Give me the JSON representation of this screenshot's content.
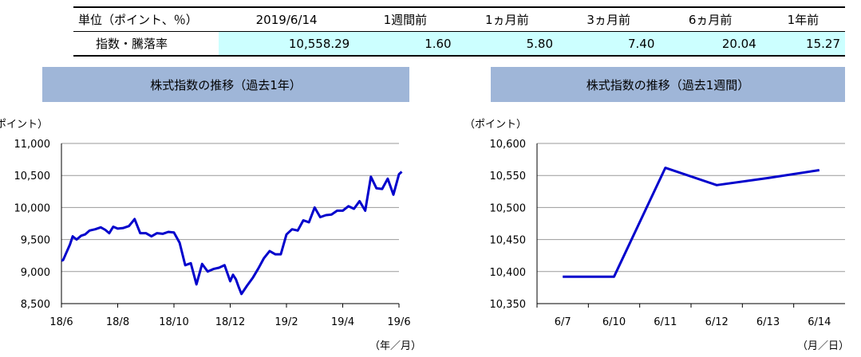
{
  "table": {
    "headers": [
      "単位（ポイント、％）",
      "2019/6/14",
      "1週間前",
      "1ヵ月前",
      "3ヵ月前",
      "6ヵ月前",
      "1年前"
    ],
    "row_label": "指数・騰落率",
    "values": [
      "10,558.29",
      "1.60",
      "5.80",
      "7.40",
      "20.04",
      "15.27"
    ]
  },
  "chart_data": [
    {
      "type": "line",
      "title": "株式指数の推移（過去1年）",
      "ylabel": "（ポイント）",
      "xlabel": "（年／月）",
      "ylim": [
        8500,
        11000
      ],
      "yticks": [
        8500,
        9000,
        9500,
        10000,
        10500,
        11000
      ],
      "ytick_labels": [
        "8,500",
        "9,000",
        "9,500",
        "10,000",
        "10,500",
        "11,000"
      ],
      "xtick_labels": [
        "18/6",
        "18/8",
        "18/10",
        "18/12",
        "19/2",
        "19/4",
        "19/6"
      ],
      "color": "#0000cc",
      "series": [
        {
          "x": [
            0.0,
            0.03,
            0.08,
            0.15,
            0.2,
            0.27,
            0.35,
            0.42,
            0.5,
            0.6,
            0.7,
            0.78,
            0.85,
            0.92,
            1.0,
            1.1,
            1.2,
            1.3,
            1.4,
            1.5,
            1.6,
            1.7,
            1.8,
            1.9,
            2.0,
            2.1,
            2.2,
            2.3,
            2.4,
            2.5,
            2.6,
            2.7,
            2.8,
            2.9,
            3.0,
            3.05,
            3.1,
            3.15,
            3.2,
            3.3,
            3.4,
            3.5,
            3.6,
            3.7,
            3.8,
            3.9,
            4.0,
            4.1,
            4.2,
            4.3,
            4.4,
            4.5,
            4.6,
            4.7,
            4.8,
            4.9,
            5.0,
            5.1,
            5.2,
            5.3,
            5.4,
            5.5,
            5.6,
            5.7,
            5.8,
            5.9,
            6.0,
            6.05
          ],
          "y": [
            9170,
            9180,
            9280,
            9420,
            9550,
            9500,
            9560,
            9580,
            9640,
            9660,
            9690,
            9650,
            9600,
            9700,
            9670,
            9680,
            9710,
            9820,
            9600,
            9600,
            9550,
            9600,
            9590,
            9620,
            9610,
            9450,
            9100,
            9130,
            8800,
            9120,
            9000,
            9040,
            9060,
            9100,
            8850,
            8950,
            8880,
            8760,
            8650,
            8780,
            8900,
            9050,
            9210,
            9320,
            9270,
            9270,
            9580,
            9660,
            9640,
            9800,
            9770,
            10000,
            9850,
            9880,
            9890,
            9950,
            9950,
            10020,
            9980,
            10100,
            9950,
            10480,
            10300,
            10290,
            10450,
            10200,
            10520,
            10558.29
          ]
        }
      ]
    },
    {
      "type": "line",
      "title": "株式指数の推移（過去1週間）",
      "ylabel": "（ポイント）",
      "xlabel": "（月／日）",
      "ylim": [
        10350,
        10600
      ],
      "yticks": [
        10350,
        10400,
        10450,
        10500,
        10550,
        10600
      ],
      "ytick_labels": [
        "10,350",
        "10,400",
        "10,450",
        "10,500",
        "10,550",
        "10,600"
      ],
      "categories": [
        "6/7",
        "6/10",
        "6/11",
        "6/12",
        "6/13",
        "6/14"
      ],
      "color": "#0000cc",
      "series": [
        {
          "values": [
            10392,
            10392,
            10562,
            10535,
            10546,
            10558.29
          ]
        }
      ]
    }
  ]
}
